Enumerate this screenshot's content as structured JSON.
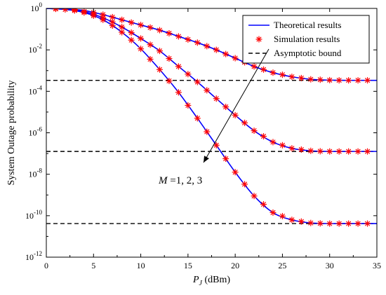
{
  "chart_data": {
    "type": "line",
    "ylabel": "System Outage probability",
    "xlabel": {
      "main": "P",
      "sub": "J",
      "unit": " (dBm)"
    },
    "xlim": [
      0,
      35
    ],
    "ylim_log10": [
      -12,
      0
    ],
    "y_scale": "log",
    "x_ticks": [
      "0",
      "5",
      "10",
      "15",
      "20",
      "25",
      "30",
      "35"
    ],
    "y_tick_exponents": [
      "0",
      "-2",
      "-4",
      "-6",
      "-8",
      "-10",
      "-12"
    ],
    "legend": {
      "placement": "top-right",
      "entries": [
        {
          "label": "Theoretical results",
          "style": "solid-line",
          "color": "#0000ff"
        },
        {
          "label": "Simulation results",
          "style": "asterisk-marker",
          "color": "#ff0000"
        },
        {
          "label": "Asymptotic bound",
          "style": "dashed-line",
          "color": "#000000"
        }
      ]
    },
    "annotation": {
      "lhs": "M",
      "rhs": "=1,  2,  3"
    },
    "series": [
      {
        "type": "theoretical",
        "x": [
          0,
          2,
          4,
          6,
          8,
          10,
          12,
          14,
          16,
          18,
          20,
          22,
          24,
          26,
          28,
          30,
          32,
          35
        ],
        "log10_y": [
          0,
          -0.03,
          -0.1,
          -0.3,
          -0.55,
          -0.8,
          -1.05,
          -1.35,
          -1.65,
          -2.0,
          -2.4,
          -2.8,
          -3.1,
          -3.3,
          -3.42,
          -3.46,
          -3.47,
          -3.47
        ]
      },
      {
        "type": "theoretical",
        "x": [
          0,
          2,
          4,
          6,
          8,
          10,
          12,
          14,
          16,
          18,
          20,
          22,
          24,
          26,
          28,
          30,
          32,
          35
        ],
        "log10_y": [
          0,
          -0.05,
          -0.15,
          -0.45,
          -0.9,
          -1.45,
          -2.05,
          -2.8,
          -3.55,
          -4.35,
          -5.15,
          -5.9,
          -6.45,
          -6.75,
          -6.87,
          -6.9,
          -6.9,
          -6.9
        ]
      },
      {
        "type": "theoretical",
        "x": [
          0,
          2,
          4,
          6,
          8,
          10,
          12,
          14,
          16,
          18,
          20,
          22,
          24,
          26,
          28,
          30,
          32,
          35
        ],
        "log10_y": [
          0,
          -0.05,
          -0.2,
          -0.55,
          -1.15,
          -1.95,
          -2.95,
          -4.05,
          -5.3,
          -6.6,
          -7.9,
          -9.05,
          -9.85,
          -10.2,
          -10.35,
          -10.38,
          -10.38,
          -10.38
        ]
      },
      {
        "type": "simulation",
        "x": [
          1,
          3,
          5,
          6,
          7,
          8,
          9,
          10,
          11,
          12,
          13,
          14,
          15,
          16,
          17,
          18,
          19,
          20,
          21,
          22,
          23,
          24,
          25,
          26,
          27,
          28,
          29,
          30,
          31,
          32,
          33,
          34
        ],
        "log10_y": [
          -0.01,
          -0.05,
          -0.2,
          -0.3,
          -0.42,
          -0.55,
          -0.68,
          -0.8,
          -0.92,
          -1.05,
          -1.2,
          -1.35,
          -1.5,
          -1.65,
          -1.82,
          -2.0,
          -2.2,
          -2.4,
          -2.6,
          -2.8,
          -2.95,
          -3.1,
          -3.2,
          -3.3,
          -3.36,
          -3.42,
          -3.44,
          -3.46,
          -3.47,
          -3.47,
          -3.47,
          -3.47
        ]
      },
      {
        "type": "simulation",
        "x": [
          1,
          3,
          4,
          5,
          6,
          7,
          8,
          9,
          10,
          11,
          12,
          13,
          14,
          15,
          16,
          17,
          18,
          19,
          20,
          21,
          22,
          23,
          24,
          25,
          26,
          27,
          28,
          29,
          30,
          31,
          32,
          33,
          34
        ],
        "log10_y": [
          -0.02,
          -0.08,
          -0.15,
          -0.28,
          -0.45,
          -0.65,
          -0.9,
          -1.17,
          -1.45,
          -1.75,
          -2.05,
          -2.42,
          -2.8,
          -3.17,
          -3.55,
          -3.95,
          -4.35,
          -4.75,
          -5.15,
          -5.52,
          -5.9,
          -6.17,
          -6.45,
          -6.6,
          -6.75,
          -6.81,
          -6.87,
          -6.89,
          -6.9,
          -6.9,
          -6.9,
          -6.9,
          -6.9
        ]
      },
      {
        "type": "simulation",
        "x": [
          1,
          2,
          3,
          4,
          5,
          6,
          7,
          8,
          9,
          10,
          11,
          12,
          13,
          14,
          15,
          16,
          17,
          18,
          19,
          20,
          21,
          22,
          23,
          24,
          25,
          26,
          27,
          28,
          29,
          30,
          31,
          32,
          33,
          34
        ],
        "log10_y": [
          -0.02,
          -0.05,
          -0.1,
          -0.2,
          -0.35,
          -0.55,
          -0.83,
          -1.15,
          -1.53,
          -1.95,
          -2.45,
          -2.95,
          -3.5,
          -4.05,
          -4.68,
          -5.3,
          -5.95,
          -6.6,
          -7.25,
          -7.9,
          -8.48,
          -9.05,
          -9.45,
          -9.85,
          -10.02,
          -10.2,
          -10.28,
          -10.35,
          -10.37,
          -10.38,
          -10.38,
          -10.38,
          -10.38,
          -10.38
        ]
      },
      {
        "type": "asymptotic",
        "log10_y": -3.47
      },
      {
        "type": "asymptotic",
        "log10_y": -6.9
      },
      {
        "type": "asymptotic",
        "log10_y": -10.38
      }
    ]
  }
}
